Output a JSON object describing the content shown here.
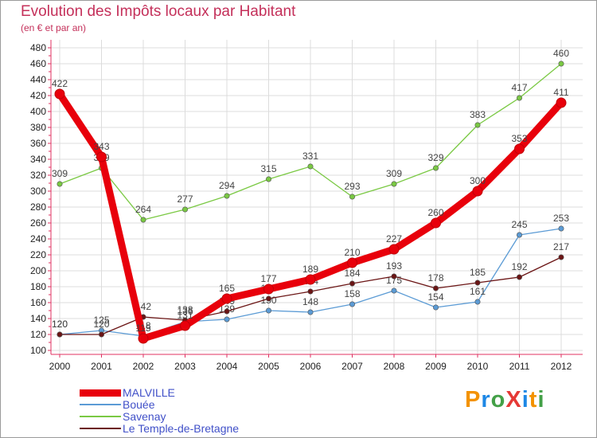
{
  "chart_data": {
    "type": "line",
    "title": "Evolution des Impôts locaux par Habitant",
    "subtitle": "(en € et par an)",
    "xlabel": "",
    "ylabel": "",
    "x": [
      "2000",
      "2001",
      "2002",
      "2003",
      "2004",
      "2005",
      "2006",
      "2007",
      "2008",
      "2009",
      "2010",
      "2011",
      "2012"
    ],
    "ylim": [
      100,
      480
    ],
    "yticks": [
      100,
      120,
      140,
      160,
      180,
      200,
      220,
      240,
      260,
      280,
      300,
      320,
      340,
      360,
      380,
      400,
      420,
      440,
      460,
      480
    ],
    "grid": true,
    "legend_position": "bottom-left",
    "series": [
      {
        "name": "MALVILLE",
        "color": "#e8000b",
        "emphasis": true,
        "values": [
          422,
          343,
          115,
          131,
          165,
          177,
          189,
          210,
          227,
          260,
          300,
          353,
          411
        ]
      },
      {
        "name": "Bouée",
        "color": "#5b9bd5",
        "emphasis": false,
        "values": [
          120,
          125,
          118,
          136,
          139,
          150,
          148,
          158,
          175,
          154,
          161,
          245,
          253
        ]
      },
      {
        "name": "Savenay",
        "color": "#7ac943",
        "emphasis": false,
        "values": [
          309,
          329,
          264,
          277,
          294,
          315,
          331,
          293,
          309,
          329,
          383,
          417,
          460
        ]
      },
      {
        "name": "Le Temple-de-Bretagne",
        "color": "#6b1515",
        "emphasis": false,
        "values": [
          120,
          120,
          142,
          138,
          149,
          165,
          174,
          184,
          193,
          178,
          185,
          192,
          217
        ]
      }
    ]
  },
  "logo": {
    "text": "ProXiti",
    "letters": [
      {
        "ch": "P",
        "color": "#f39200"
      },
      {
        "ch": "r",
        "color": "#1e88e5"
      },
      {
        "ch": "o",
        "color": "#43a047"
      },
      {
        "ch": "X",
        "color": "#e53935"
      },
      {
        "ch": "i",
        "color": "#1e88e5"
      },
      {
        "ch": "t",
        "color": "#f39200"
      },
      {
        "ch": "i",
        "color": "#43a047"
      }
    ]
  }
}
